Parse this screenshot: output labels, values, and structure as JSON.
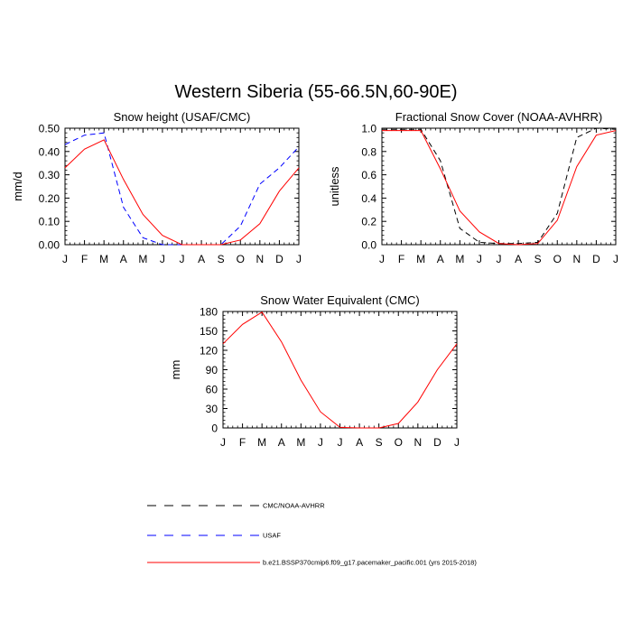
{
  "figure": {
    "title": "Western Siberia (55-66.5N,60-90E)"
  },
  "legend": [
    {
      "label": "CMC/NOAA-AVHRR",
      "color": "#000000",
      "dash": "dashed"
    },
    {
      "label": "USAF",
      "color": "#0000ff",
      "dash": "dashed"
    },
    {
      "label": "b.e21.BSSP370cmip6.f09_g17.pacemaker_pacific.001 (yrs 2015-2018)",
      "color": "#ff0000",
      "dash": "solid"
    }
  ],
  "chart_data": [
    {
      "type": "line",
      "title": "Snow height (USAF/CMC)",
      "ylabel": "mm/d",
      "xlabel": "",
      "categories": [
        "J",
        "F",
        "M",
        "A",
        "M",
        "J",
        "J",
        "A",
        "S",
        "O",
        "N",
        "D",
        "J"
      ],
      "ylim": [
        0,
        0.5
      ],
      "yticks": [
        "0.00",
        "0.10",
        "0.20",
        "0.30",
        "0.40",
        "0.50"
      ],
      "ytick_values": [
        0,
        0.1,
        0.2,
        0.3,
        0.4,
        0.5
      ],
      "series": [
        {
          "name": "CMC/NOAA-AVHRR",
          "color": "#000000",
          "dash": "dashed",
          "values": [
            0,
            0,
            0,
            0,
            0,
            0,
            0,
            0,
            0,
            0,
            0,
            0,
            0
          ]
        },
        {
          "name": "USAF",
          "color": "#0000ff",
          "dash": "dashed",
          "values": [
            0.43,
            0.47,
            0.48,
            0.16,
            0.03,
            0.0,
            0.0,
            0.0,
            0.0,
            0.08,
            0.26,
            0.33,
            0.42
          ]
        },
        {
          "name": "b.e21.BSSP370cmip6.f09_g17.pacemaker_pacific.001 (yrs 2015-2018)",
          "color": "#ff0000",
          "dash": "solid",
          "values": [
            0.33,
            0.41,
            0.45,
            0.28,
            0.13,
            0.04,
            0.0,
            0.0,
            0.0,
            0.02,
            0.09,
            0.23,
            0.33
          ]
        }
      ]
    },
    {
      "type": "line",
      "title": "Fractional Snow Cover (NOAA-AVHRR)",
      "ylabel": "unitless",
      "xlabel": "",
      "categories": [
        "J",
        "F",
        "M",
        "A",
        "M",
        "J",
        "J",
        "A",
        "S",
        "O",
        "N",
        "D",
        "J"
      ],
      "ylim": [
        0,
        1.0
      ],
      "yticks": [
        "0.0",
        "0.2",
        "0.4",
        "0.6",
        "0.8",
        "1.0"
      ],
      "ytick_values": [
        0,
        0.2,
        0.4,
        0.6,
        0.8,
        1.0
      ],
      "series": [
        {
          "name": "CMC/NOAA-AVHRR",
          "color": "#000000",
          "dash": "dashed",
          "values": [
            0.99,
            0.99,
            0.99,
            0.72,
            0.14,
            0.02,
            0.01,
            0.01,
            0.02,
            0.27,
            0.92,
            1.0,
            0.99
          ]
        },
        {
          "name": "b.e21.BSSP370cmip6.f09_g17.pacemaker_pacific.001 (yrs 2015-2018)",
          "color": "#ff0000",
          "dash": "solid",
          "values": [
            0.98,
            0.98,
            0.98,
            0.65,
            0.29,
            0.11,
            0.01,
            0.0,
            0.01,
            0.21,
            0.67,
            0.94,
            0.98
          ]
        }
      ]
    },
    {
      "type": "line",
      "title": "Snow Water Equivalent (CMC)",
      "ylabel": "mm",
      "xlabel": "",
      "categories": [
        "J",
        "F",
        "M",
        "A",
        "M",
        "J",
        "J",
        "A",
        "S",
        "O",
        "N",
        "D",
        "J"
      ],
      "ylim": [
        0,
        180
      ],
      "yticks": [
        "0",
        "30",
        "60",
        "90",
        "120",
        "150",
        "180"
      ],
      "ytick_values": [
        0,
        30,
        60,
        90,
        120,
        150,
        180
      ],
      "series": [
        {
          "name": "CMC/NOAA-AVHRR",
          "color": "#000000",
          "dash": "dashed",
          "values": [
            0,
            0,
            0,
            0,
            0,
            0,
            0,
            0,
            0,
            0,
            0,
            0,
            0
          ]
        },
        {
          "name": "b.e21.BSSP370cmip6.f09_g17.pacemaker_pacific.001 (yrs 2015-2018)",
          "color": "#ff0000",
          "dash": "solid",
          "values": [
            130,
            160,
            179,
            133,
            74,
            25,
            1,
            0,
            0,
            7,
            40,
            90,
            130
          ]
        }
      ]
    }
  ]
}
